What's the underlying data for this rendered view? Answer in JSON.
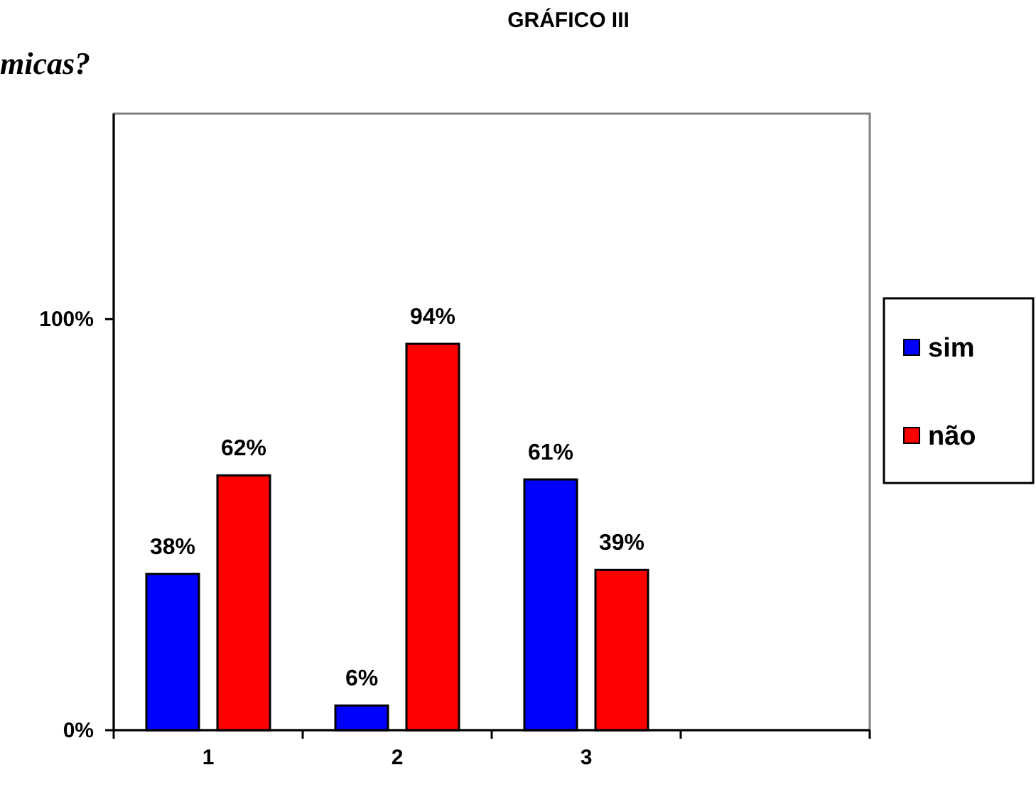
{
  "chart_data": {
    "type": "bar",
    "title": "GRÁFICO III",
    "annotations": [
      "micas?"
    ],
    "categories": [
      "1",
      "2",
      "3",
      null
    ],
    "series": [
      {
        "name": "sim",
        "color": "#0000ff",
        "values": [
          38,
          6,
          61,
          null
        ],
        "value_labels": [
          "38%",
          "6%",
          "61%",
          null
        ]
      },
      {
        "name": "não",
        "color": "#ff0000",
        "values": [
          62,
          94,
          39,
          null
        ],
        "value_labels": [
          "62%",
          "94%",
          "39%",
          null
        ]
      }
    ],
    "ylim": [
      0,
      150
    ],
    "yticks": [
      {
        "value": 0,
        "label": "0%"
      },
      {
        "value": 100,
        "label": "100%"
      }
    ],
    "grid": false,
    "legend": "right"
  }
}
